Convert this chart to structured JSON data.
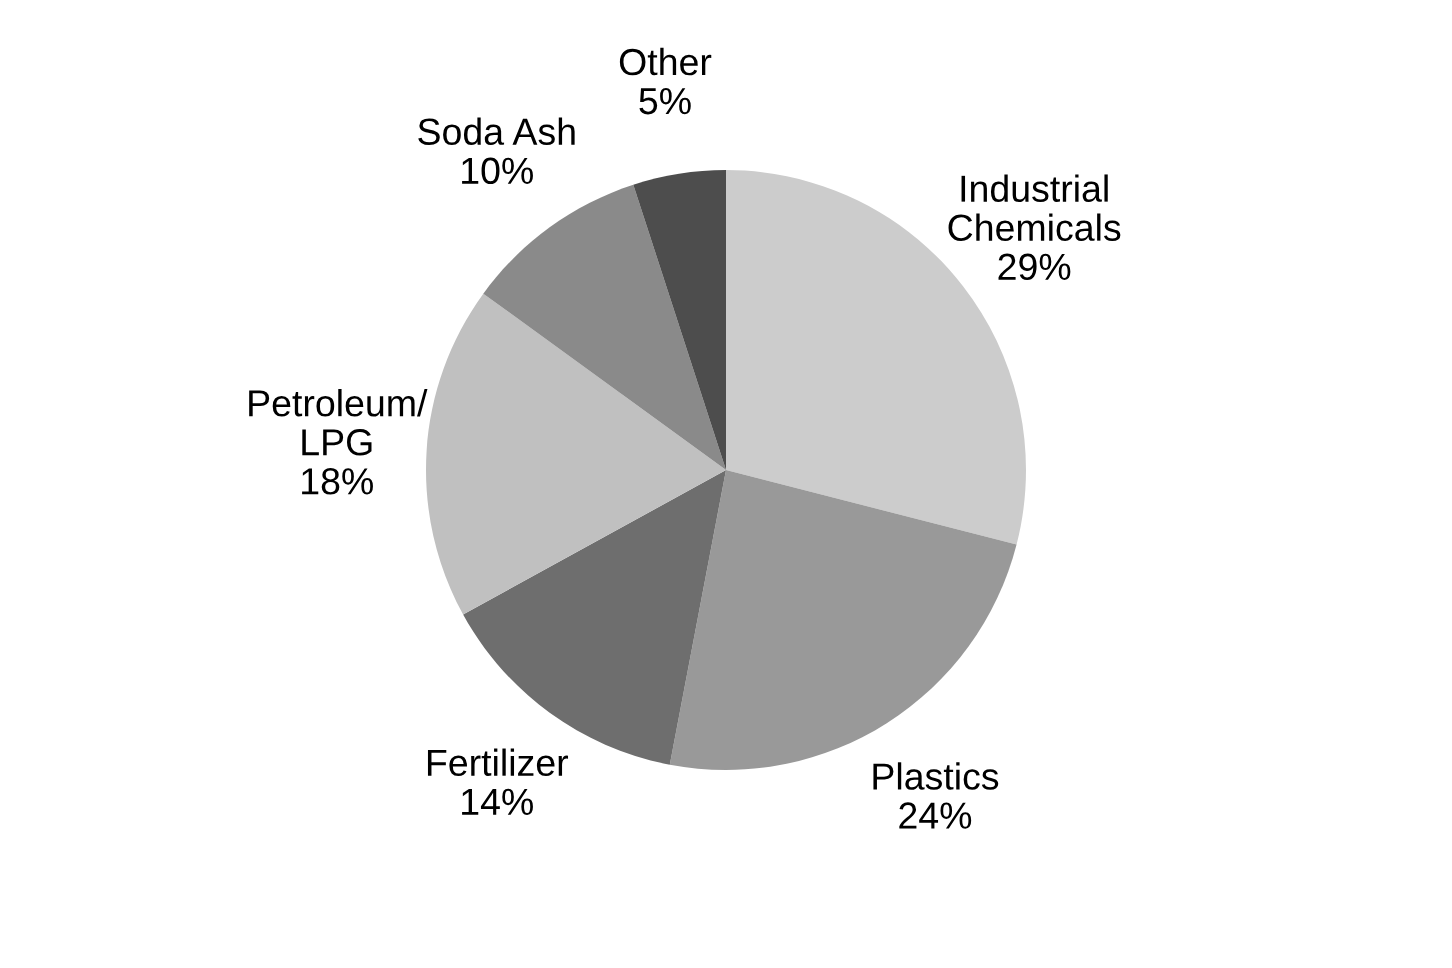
{
  "chart_data": {
    "type": "pie",
    "categories": [
      "Industrial Chemicals",
      "Plastics",
      "Fertilizer",
      "Petroleum/LPG",
      "Soda Ash",
      "Other"
    ],
    "values": [
      29,
      24,
      14,
      18,
      10,
      5
    ],
    "colors": [
      "#cccccc",
      "#999999",
      "#6e6e6e",
      "#c0c0c0",
      "#8a8a8a",
      "#4d4d4d"
    ],
    "value_labels": [
      "29%",
      "24%",
      "14%",
      "18%",
      "10%",
      "5%"
    ]
  }
}
